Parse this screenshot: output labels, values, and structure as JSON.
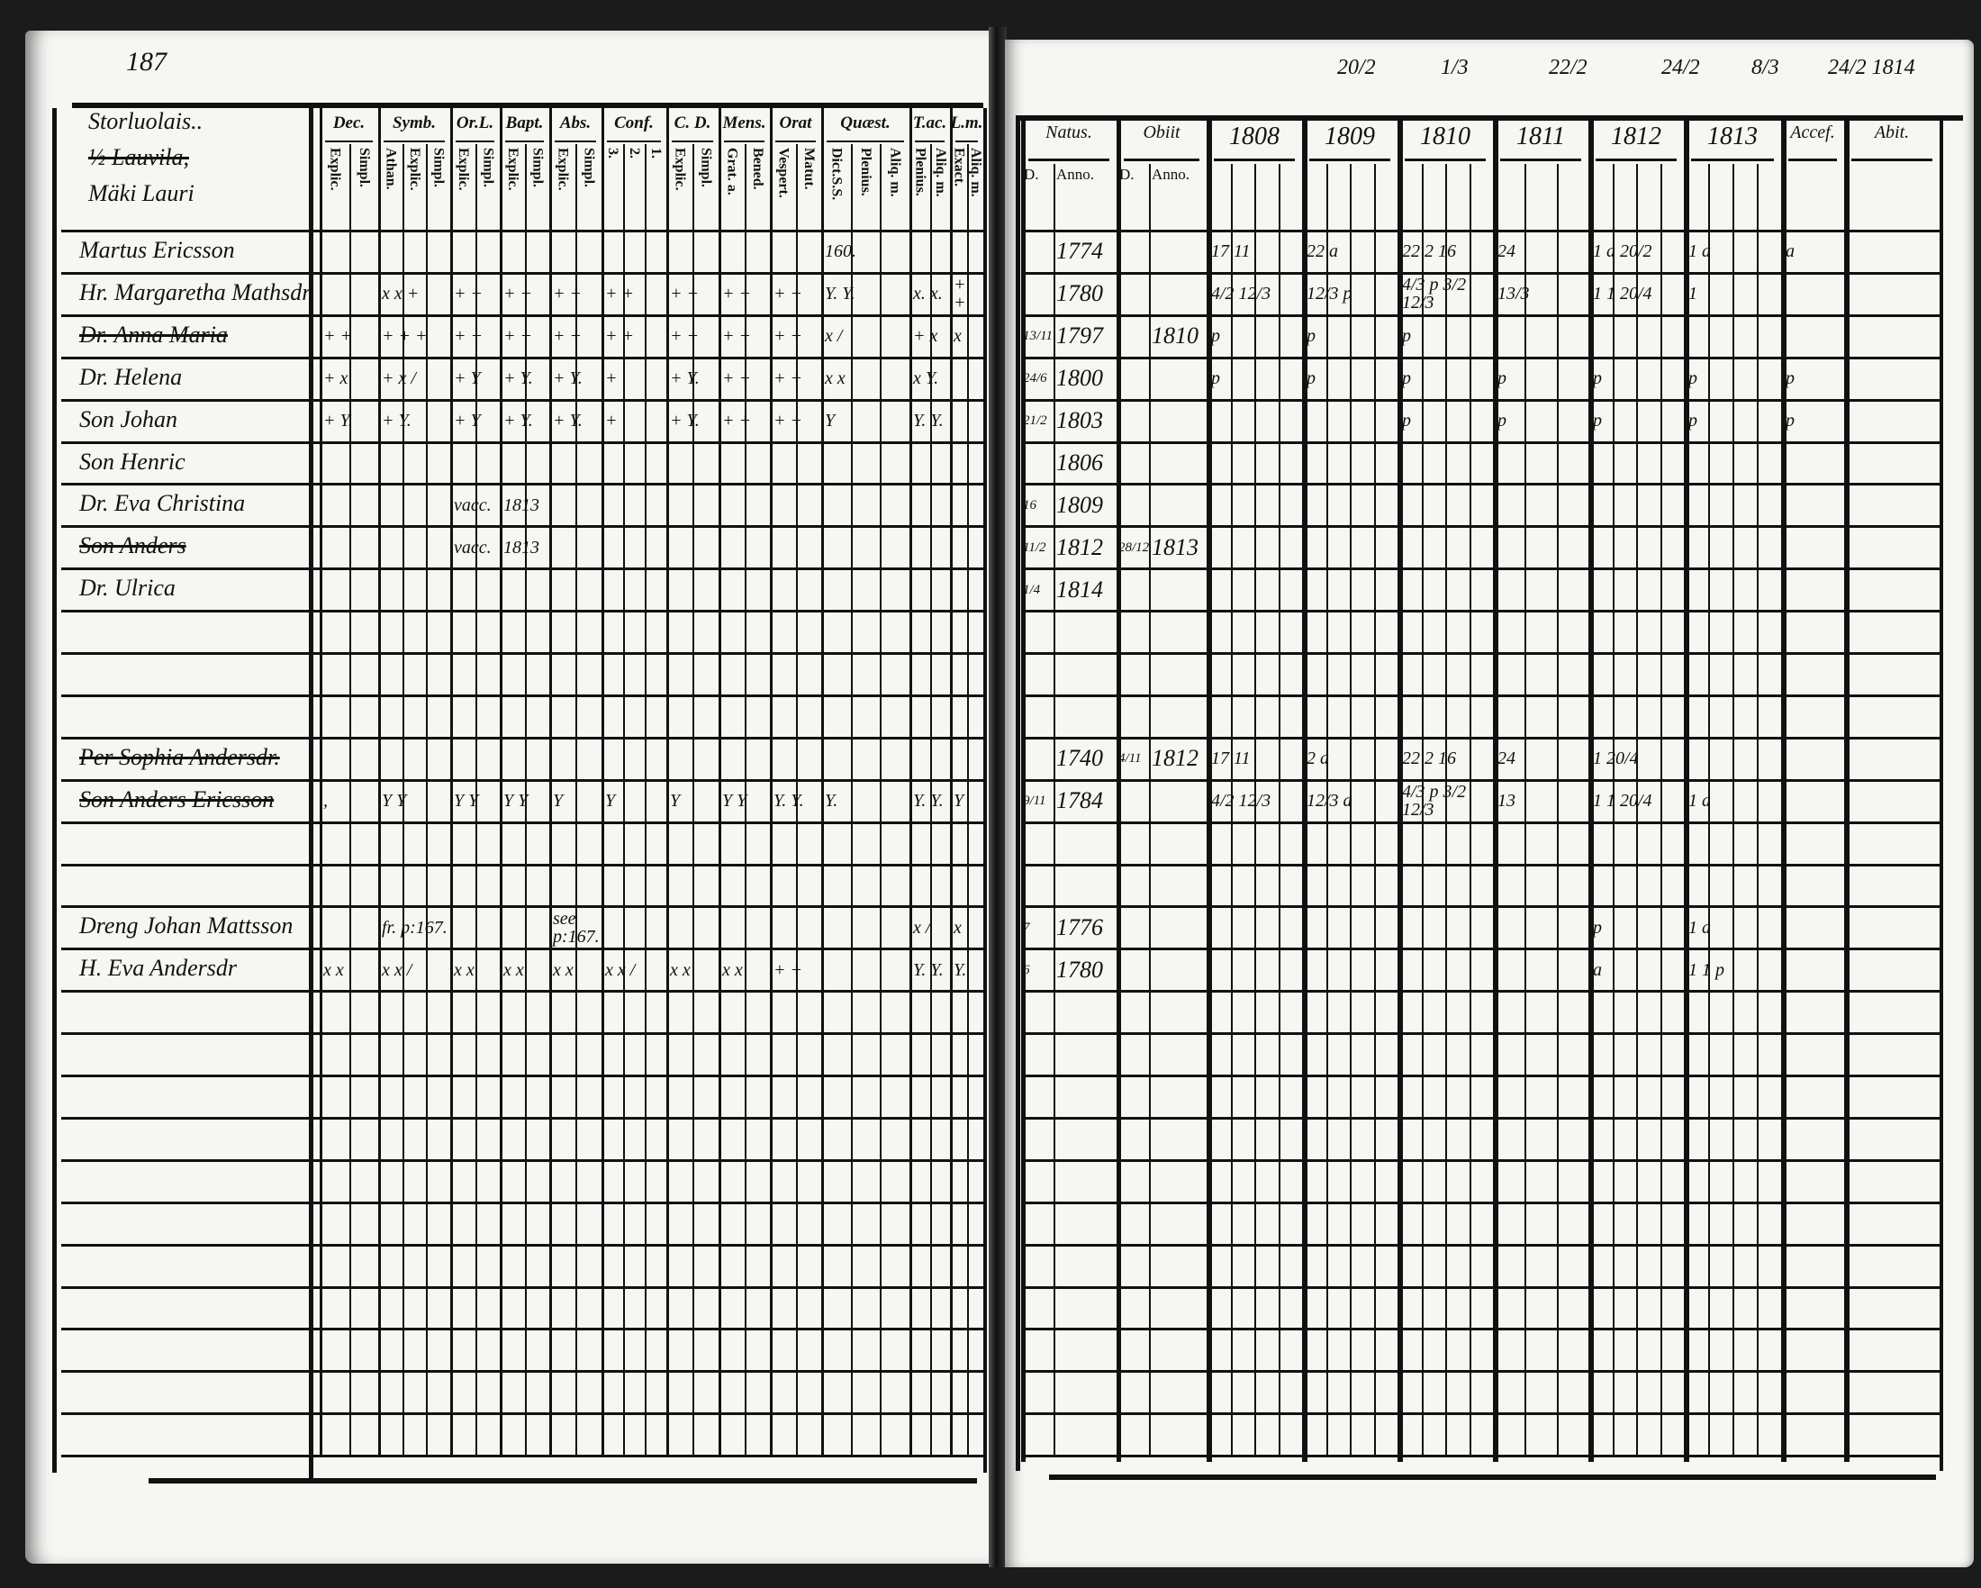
{
  "page_number": "187",
  "left": {
    "household_header": [
      "Storluolais..",
      "½ Lauvila,",
      "Mäki Lauri"
    ],
    "column_groups": [
      {
        "label": "Dec.",
        "sub": [
          "Explic.",
          "Simpl."
        ]
      },
      {
        "label": "Symb.",
        "sub": [
          "Athan.",
          "Explic.",
          "Simpl."
        ]
      },
      {
        "label": "Or.L.",
        "sub": [
          "Explic.",
          "Simpl."
        ]
      },
      {
        "label": "Bapt.",
        "sub": [
          "Explic.",
          "Simpl."
        ]
      },
      {
        "label": "Abs.",
        "sub": [
          "Explic.",
          "Simpl."
        ]
      },
      {
        "label": "Conf.",
        "sub": [
          "3.",
          "2.",
          "1."
        ]
      },
      {
        "label": "C. D.",
        "sub": [
          "Explic.",
          "Simpl."
        ]
      },
      {
        "label": "Mens.",
        "sub": [
          "Grat. a.",
          "Bened."
        ]
      },
      {
        "label": "Orat",
        "sub": [
          "Vespert.",
          "Matut."
        ]
      },
      {
        "label": "Quæst.",
        "sub": [
          "Dict.S.S.",
          "Plenius.",
          "Aliq. m."
        ]
      },
      {
        "label": "T.ac.",
        "sub": [
          "Plenius.",
          "Aliq. m."
        ]
      },
      {
        "label": "L.m.",
        "sub": [
          "Exact.",
          "Aliq. m."
        ]
      }
    ],
    "rows": [
      {
        "name": "Martus Ericsson",
        "struck": false,
        "marks": [
          "",
          "",
          "",
          "",
          "",
          "",
          "",
          "",
          "",
          "160.",
          "",
          ""
        ]
      },
      {
        "name": "Hr. Margaretha Mathsdr",
        "struck": false,
        "marks": [
          "",
          "x x +",
          "+ +",
          "+ +",
          "+ +",
          "+ +",
          "+ +",
          "+ +",
          "+ +",
          "Y. Y.",
          "x. x.",
          "+ +"
        ]
      },
      {
        "name": "Dr. Anna Maria",
        "struck": true,
        "marks": [
          "+ +",
          "+ + +",
          "+ +",
          "+ +",
          "+ +",
          "+ +",
          "+ +",
          "+ +",
          "+ +",
          "x /",
          "+ x",
          "x"
        ]
      },
      {
        "name": "Dr. Helena",
        "struck": false,
        "marks": [
          "+ x",
          "+ x /",
          "+ Y",
          "+ Y.",
          "+ Y.",
          "+",
          "+ Y.",
          "+ +",
          "+ +",
          "x x",
          "x Y.",
          ""
        ]
      },
      {
        "name": "Son Johan",
        "struck": false,
        "marks": [
          "+ Y.",
          "+ Y.",
          "+ Y",
          "+ Y.",
          "+ Y.",
          "+",
          "+ Y.",
          "+ +",
          "+ +",
          "Y",
          "Y. Y.",
          ""
        ]
      },
      {
        "name": "Son Henric",
        "struck": false,
        "marks": []
      },
      {
        "name": "Dr. Eva Christina",
        "struck": false,
        "marks": [
          "",
          "",
          "vacc.",
          "1813",
          "",
          "",
          "",
          "",
          "",
          "",
          "",
          ""
        ]
      },
      {
        "name": "Son Anders",
        "struck": true,
        "marks": [
          "",
          "",
          "vacc.",
          "1813",
          "",
          "",
          "",
          "",
          "",
          "",
          "",
          ""
        ]
      },
      {
        "name": "Dr. Ulrica",
        "struck": false,
        "marks": []
      },
      {
        "name": "",
        "struck": false,
        "marks": []
      },
      {
        "name": "",
        "struck": false,
        "marks": []
      },
      {
        "name": "",
        "struck": false,
        "marks": []
      },
      {
        "name": "Per Sophia Andersdr.",
        "struck": true,
        "marks": []
      },
      {
        "name": "Son Anders Ericsson",
        "struck": true,
        "marks": [
          ",",
          "Y Y",
          "Y Y",
          "Y Y",
          "Y",
          "Y",
          "Y",
          "Y Y",
          "Y. Y.",
          "Y.",
          "Y. Y.",
          "Y"
        ]
      },
      {
        "name": "",
        "struck": false,
        "marks": []
      },
      {
        "name": "",
        "struck": false,
        "marks": []
      },
      {
        "name": "Dreng Johan Mattsson",
        "struck": false,
        "marks": [
          "",
          "fr. p:167.",
          "",
          "",
          "see p:167.",
          "",
          "",
          "",
          "",
          "",
          "x /",
          "x"
        ]
      },
      {
        "name": "H. Eva Andersdr",
        "struck": false,
        "marks": [
          "x x",
          "x x /",
          "x x",
          "x x",
          "x x",
          "x x /",
          "x x",
          "x x",
          "+ +",
          "",
          "Y. Y.",
          "Y."
        ]
      }
    ]
  },
  "right": {
    "top_dates": [
      "20/2",
      "1/3",
      "22/2",
      "24/2",
      "8/3",
      "24/2 1814"
    ],
    "column_groups": [
      {
        "label": "Natus.",
        "sub": [
          "D.",
          "Anno."
        ]
      },
      {
        "label": "Obiit",
        "sub": [
          "D.",
          "Anno."
        ]
      },
      {
        "label": "1808",
        "sub": [
          "",
          "",
          "",
          ""
        ]
      },
      {
        "label": "1809",
        "sub": [
          "",
          "",
          "",
          ""
        ]
      },
      {
        "label": "1810",
        "sub": [
          "",
          "",
          "",
          ""
        ]
      },
      {
        "label": "1811",
        "sub": [
          "",
          "",
          ""
        ]
      },
      {
        "label": "1812",
        "sub": [
          "",
          "",
          "",
          ""
        ]
      },
      {
        "label": "1813",
        "sub": [
          "",
          "",
          "",
          ""
        ]
      },
      {
        "label": "Accef.",
        "sub": [
          ""
        ]
      },
      {
        "label": "Abit.",
        "sub": [
          ""
        ]
      }
    ],
    "rows": [
      {
        "cells": [
          "",
          "1774",
          "",
          "",
          "17   11",
          "22  a",
          "22   2 16",
          "24",
          "1  a 20/2",
          "1  a",
          "a",
          ""
        ]
      },
      {
        "cells": [
          "",
          "1780",
          "",
          "",
          "4/2   12/3",
          "12/3 p",
          "4/3 p 3/2 12/3",
          "13/3",
          "1  1 20/4",
          "1",
          "",
          ""
        ]
      },
      {
        "cells": [
          "13/11",
          "1797",
          "",
          "1810",
          "p",
          "p",
          "p",
          "",
          "",
          "",
          "",
          ""
        ]
      },
      {
        "cells": [
          "24/6",
          "1800",
          "",
          "",
          "p",
          "p",
          "p",
          "p",
          "p",
          "p",
          "p",
          ""
        ]
      },
      {
        "cells": [
          "21/2",
          "1803",
          "",
          "",
          "",
          "",
          "p",
          "p",
          "p",
          "p",
          "p",
          ""
        ]
      },
      {
        "cells": [
          "",
          "1806",
          "",
          "",
          "",
          "",
          "",
          "",
          "",
          "",
          "",
          ""
        ]
      },
      {
        "cells": [
          "16",
          "1809",
          "",
          "",
          "",
          "",
          "",
          "",
          "",
          "",
          "",
          ""
        ]
      },
      {
        "cells": [
          "11/2",
          "1812",
          "28/12",
          "1813",
          "",
          "",
          "",
          "",
          "",
          "",
          "",
          ""
        ]
      },
      {
        "cells": [
          "1/4",
          "1814",
          "",
          "",
          "",
          "",
          "",
          "",
          "",
          "",
          "",
          ""
        ]
      },
      {
        "cells": []
      },
      {
        "cells": []
      },
      {
        "cells": []
      },
      {
        "cells": [
          "",
          "1740",
          "4/11",
          "1812",
          "17   11",
          "2  a",
          "22   2 16",
          "24",
          "1 20/4",
          "",
          "",
          ""
        ]
      },
      {
        "cells": [
          "9/11",
          "1784",
          "",
          "",
          "4/2   12/3",
          "12/3 a",
          "4/3 p 3/2 12/3",
          "13",
          "1  1 20/4",
          "1  a",
          "",
          ""
        ]
      },
      {
        "cells": []
      },
      {
        "cells": []
      },
      {
        "cells": [
          "7",
          "1776",
          "",
          "",
          "",
          "",
          "",
          "",
          "p",
          "1  a",
          "",
          ""
        ]
      },
      {
        "cells": [
          "6",
          "1780",
          "",
          "",
          "",
          "",
          "",
          "",
          "a",
          "1 1 p",
          "",
          ""
        ]
      }
    ]
  }
}
